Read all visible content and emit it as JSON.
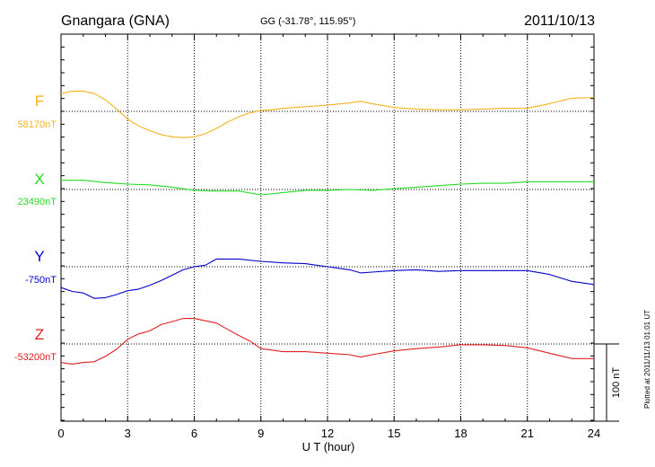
{
  "header": {
    "station": "Gnangara (GNA)",
    "coords": "GG (-31.78°, 115.95°)",
    "date": "2011/10/13"
  },
  "footer": {
    "plotted": "Plotted at 2011/11/13 01:01  UT"
  },
  "chart_data": {
    "type": "line",
    "title": "Gnangara (GNA)",
    "xlabel": "U T (hour)",
    "ylabel": "",
    "xlim": [
      0,
      24
    ],
    "xticks": [
      0,
      3,
      6,
      9,
      12,
      15,
      18,
      21,
      24
    ],
    "grid": true,
    "scale_bar_label": "100 nT",
    "scale_bar_nT": 100,
    "series": [
      {
        "name": "F",
        "baseline_label": "58170nT",
        "baseline_nT": 58170,
        "color": "#f5b21e",
        "x": [
          0,
          0.5,
          1.0,
          1.5,
          2.0,
          2.5,
          3.0,
          3.5,
          4.0,
          4.5,
          5.0,
          5.5,
          6.0,
          6.5,
          7.0,
          7.5,
          8.0,
          8.5,
          9.0,
          9.5,
          10,
          11,
          12,
          13,
          13.5,
          14,
          15,
          16,
          17,
          18,
          19,
          20,
          21,
          22,
          23,
          24
        ],
        "y": [
          23,
          26,
          26,
          23,
          15,
          3,
          -10,
          -19,
          -25,
          -30,
          -33,
          -34,
          -33,
          -29,
          -22,
          -14,
          -7,
          -2,
          1,
          2,
          4,
          6,
          8,
          11,
          13,
          10,
          5,
          3,
          2,
          2,
          3,
          4,
          4,
          10,
          17,
          18
        ]
      },
      {
        "name": "X",
        "baseline_label": "23490nT",
        "baseline_nT": 23490,
        "color": "#22dd22",
        "x": [
          0,
          1,
          2,
          3,
          4,
          5,
          6,
          7,
          8,
          9,
          10,
          11,
          12,
          13,
          14,
          15,
          16,
          17,
          18,
          19,
          20,
          21,
          22,
          23,
          24
        ],
        "y": [
          12,
          12,
          9,
          7,
          6,
          3,
          -1,
          -2,
          -2,
          -7,
          -4,
          -1,
          -1,
          0,
          -1,
          1,
          3,
          5,
          7,
          8,
          8,
          10,
          10,
          10,
          10
        ]
      },
      {
        "name": "Y",
        "baseline_label": "-750nT",
        "baseline_nT": -750,
        "color": "#0000cc",
        "x": [
          0,
          0.5,
          1.0,
          1.5,
          2.0,
          2.5,
          3.0,
          3.5,
          4.0,
          4.5,
          5.0,
          5.5,
          6.0,
          6.5,
          7.0,
          8.0,
          9.0,
          10,
          11,
          12,
          13,
          13.5,
          14,
          15,
          16,
          17,
          18,
          19,
          20,
          21,
          22,
          23,
          24
        ],
        "y": [
          -27,
          -32,
          -34,
          -41,
          -40,
          -36,
          -31,
          -29,
          -24,
          -18,
          -11,
          -4,
          0,
          2,
          10,
          10,
          7,
          5,
          4,
          0,
          -4,
          -8,
          -7,
          -5,
          -4,
          -6,
          -5,
          -5,
          -5,
          -5,
          -10,
          -19,
          -23
        ]
      },
      {
        "name": "Z",
        "baseline_label": "-53200nT",
        "baseline_nT": -53200,
        "color": "#e02020",
        "x": [
          0,
          0.5,
          1.0,
          1.5,
          2.0,
          2.5,
          3.0,
          3.5,
          4.0,
          4.5,
          5.0,
          5.5,
          6.0,
          6.5,
          7.0,
          7.5,
          8.0,
          8.5,
          9.0,
          10,
          11,
          12,
          13,
          13.5,
          14,
          15,
          16,
          17,
          18,
          19,
          20,
          21,
          22,
          23,
          24
        ],
        "y": [
          -24,
          -26,
          -24,
          -23,
          -16,
          -7,
          6,
          13,
          17,
          25,
          29,
          33,
          33,
          30,
          27,
          19,
          11,
          4,
          -6,
          -10,
          -10,
          -12,
          -14,
          -17,
          -14,
          -9,
          -6,
          -4,
          -1,
          -1,
          -2,
          -5,
          -12,
          -19,
          -19
        ]
      }
    ]
  }
}
